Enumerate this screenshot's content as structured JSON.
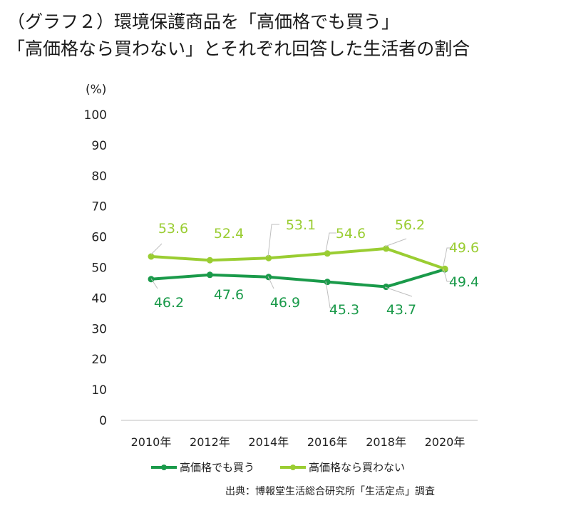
{
  "title_lines": [
    "（グラフ２）環境保護商品を「高価格でも買う」",
    "「高価格なら買わない」とそれぞれ回答した生活者の割合"
  ],
  "source": "出典：博報堂生活総合研究所「生活定点」調査",
  "chart_data": {
    "type": "line",
    "title": "（グラフ２）環境保護商品を「高価格でも買う」「高価格なら買わない」とそれぞれ回答した生活者の割合",
    "ylabel": "(%)",
    "xlabel": "",
    "ylim": [
      0,
      100
    ],
    "yticks": [
      "0",
      "10",
      "20",
      "30",
      "40",
      "50",
      "60",
      "70",
      "80",
      "90",
      "100"
    ],
    "categories": [
      "2010年",
      "2012年",
      "2014年",
      "2016年",
      "2018年",
      "2020年"
    ],
    "grid": false,
    "legend_position": "bottom",
    "series": [
      {
        "name": "高価格でも買う",
        "color": "#1a9a4a",
        "values": [
          46.2,
          47.6,
          46.9,
          45.3,
          43.7,
          49.4
        ],
        "labels": [
          "46.2",
          "47.6",
          "46.9",
          "45.3",
          "43.7",
          "49.4"
        ]
      },
      {
        "name": "高価格なら買わない",
        "color": "#9acd32",
        "values": [
          53.6,
          52.4,
          53.1,
          54.6,
          56.2,
          49.6
        ],
        "labels": [
          "53.6",
          "52.4",
          "53.1",
          "54.6",
          "56.2",
          "49.6"
        ]
      }
    ]
  }
}
